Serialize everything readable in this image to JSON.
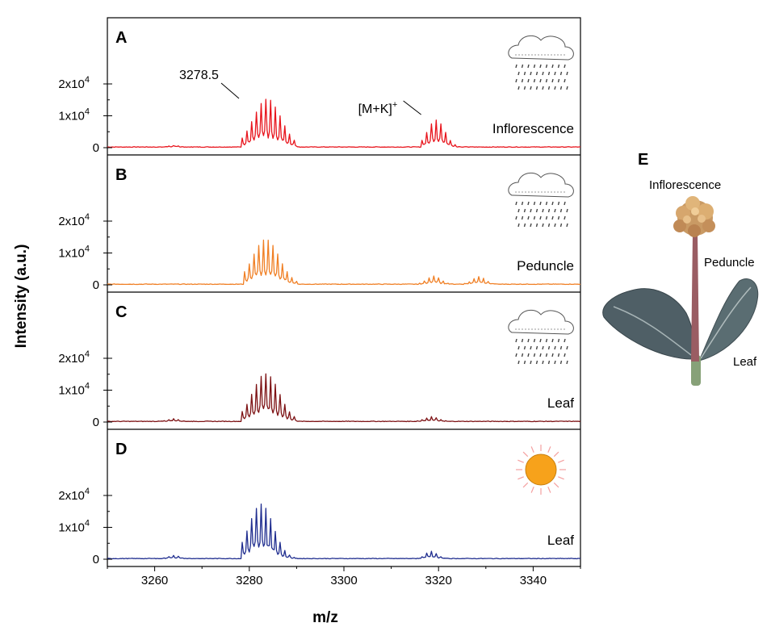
{
  "chart_data": {
    "type": "line",
    "xlabel": "m/z",
    "ylabel": "Intensity (a.u.)",
    "xlim": [
      3250,
      3350
    ],
    "x_ticks": [
      3260,
      3280,
      3300,
      3320,
      3340
    ],
    "ylim": [
      0,
      20000
    ],
    "y_tick_labels": [
      {
        "value": 0,
        "label": "0"
      },
      {
        "value": 10000,
        "base": "1x10",
        "exp": "4"
      },
      {
        "value": 20000,
        "base": "2x10",
        "exp": "4"
      }
    ],
    "panels": [
      {
        "letter": "A",
        "label": "Inflorescence",
        "color": "#e8141c",
        "weather": "rain",
        "peak_envelope": [
          {
            "center": 3283.8,
            "width": 5.2,
            "height": 15000,
            "start": 3278.5,
            "end": 3290
          },
          {
            "center": 3319.5,
            "width": 3.2,
            "height": 8500,
            "start": 3316.5,
            "end": 3326
          },
          {
            "center": 3264,
            "width": 2,
            "height": 500,
            "start": 3260,
            "end": 3268
          }
        ],
        "annotations": [
          {
            "text": "3278.5",
            "x": 3278.5
          },
          {
            "base": "[M+K]",
            "exp": "+",
            "x": 3317
          }
        ]
      },
      {
        "letter": "B",
        "label": "Peduncle",
        "color": "#f07f24",
        "weather": "rain",
        "peak_envelope": [
          {
            "center": 3283.5,
            "width": 5,
            "height": 14000,
            "start": 3279,
            "end": 3290
          },
          {
            "center": 3319,
            "width": 2.5,
            "height": 2600,
            "start": 3316,
            "end": 3323
          },
          {
            "center": 3328.5,
            "width": 2.5,
            "height": 2300,
            "start": 3325.5,
            "end": 3332
          }
        ],
        "annotations": []
      },
      {
        "letter": "C",
        "label": "Leaf",
        "color": "#7d1214",
        "weather": "rain",
        "peak_envelope": [
          {
            "center": 3283.5,
            "width": 5,
            "height": 15000,
            "start": 3278.5,
            "end": 3290
          },
          {
            "center": 3318.5,
            "width": 2.5,
            "height": 1400,
            "start": 3315.5,
            "end": 3322
          },
          {
            "center": 3264,
            "width": 2,
            "height": 900,
            "start": 3260,
            "end": 3268
          }
        ],
        "annotations": []
      },
      {
        "letter": "D",
        "label": "Leaf",
        "color": "#1f2d8f",
        "weather": "sun",
        "peak_envelope": [
          {
            "center": 3282.5,
            "width": 4.6,
            "height": 17000,
            "start": 3278.5,
            "end": 3290
          },
          {
            "center": 3318.5,
            "width": 2.2,
            "height": 2300,
            "start": 3315.5,
            "end": 3322
          },
          {
            "center": 3264,
            "width": 2,
            "height": 1000,
            "start": 3260,
            "end": 3268
          }
        ],
        "annotations": []
      }
    ],
    "side_panel": {
      "letter": "E",
      "labels": {
        "inflorescence": "Inflorescence",
        "peduncle": "Peduncle",
        "leaf": "Leaf"
      }
    }
  }
}
